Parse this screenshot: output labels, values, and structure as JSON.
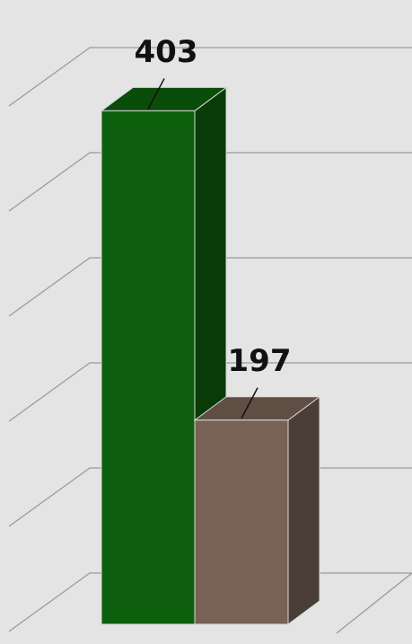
{
  "chart_data": {
    "type": "bar3d",
    "categories": [
      null,
      null
    ],
    "values": [
      403,
      197
    ],
    "colors": [
      "#0d5f0d",
      "#776255"
    ],
    "ylim": [
      70,
      420
    ],
    "yticks": [
      70,
      140,
      210,
      280,
      350,
      420
    ],
    "grid": true
  }
}
